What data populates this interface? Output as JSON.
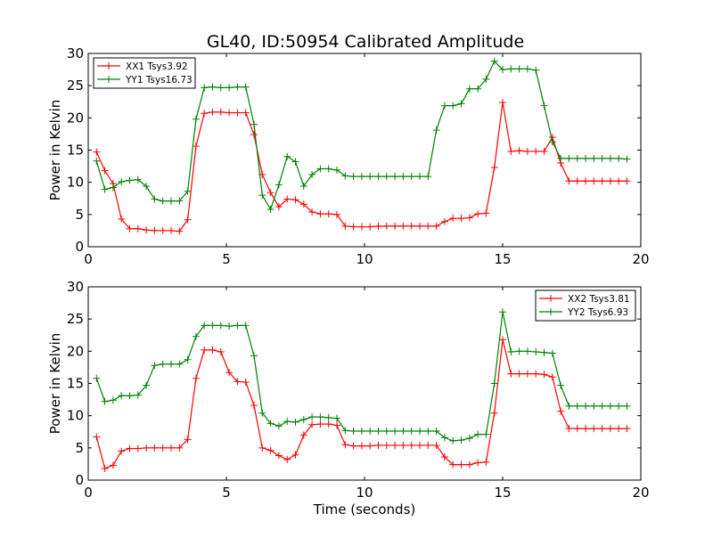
{
  "figure": {
    "title": "GL40, ID:50954 Calibrated Amplitude"
  },
  "chart_data": [
    {
      "type": "line",
      "title": "GL40, ID:50954 Calibrated Amplitude",
      "xlabel": "",
      "ylabel": "Power in Kelvin",
      "xlim": [
        0,
        20
      ],
      "ylim": [
        0,
        30
      ],
      "xticks": [
        0,
        5,
        10,
        15,
        20
      ],
      "yticks": [
        0,
        5,
        10,
        15,
        20,
        25,
        30
      ],
      "grid": false,
      "legend_position": "top-left",
      "marker": "+",
      "x": [
        0.3,
        0.6,
        0.9,
        1.2,
        1.5,
        1.8,
        2.1,
        2.4,
        2.7,
        3.0,
        3.3,
        3.6,
        3.9,
        4.2,
        4.5,
        4.8,
        5.1,
        5.4,
        5.7,
        6.0,
        6.3,
        6.6,
        6.9,
        7.2,
        7.5,
        7.8,
        8.1,
        8.4,
        8.7,
        9.0,
        9.3,
        9.6,
        9.9,
        10.2,
        10.5,
        10.8,
        11.1,
        11.4,
        11.7,
        12.0,
        12.3,
        12.6,
        12.9,
        13.2,
        13.5,
        13.8,
        14.1,
        14.4,
        14.7,
        15.0,
        15.3,
        15.6,
        15.9,
        16.2,
        16.5,
        16.8,
        17.1,
        17.4,
        17.7,
        18.0,
        18.3,
        18.6,
        18.9,
        19.2,
        19.5
      ],
      "series": [
        {
          "name": "XX1 Tsys3.92",
          "color": "#ff0000",
          "values": [
            14.7,
            11.8,
            9.8,
            4.3,
            2.8,
            2.8,
            2.6,
            2.5,
            2.5,
            2.5,
            2.4,
            4.2,
            15.6,
            20.7,
            20.9,
            20.9,
            20.8,
            20.8,
            20.8,
            17.4,
            11.2,
            8.4,
            6.2,
            7.4,
            7.3,
            6.6,
            5.4,
            5.1,
            5.1,
            5.0,
            3.2,
            3.1,
            3.1,
            3.1,
            3.2,
            3.2,
            3.2,
            3.2,
            3.2,
            3.2,
            3.2,
            3.2,
            3.9,
            4.4,
            4.4,
            4.5,
            5.1,
            5.2,
            12.3,
            22.4,
            14.8,
            14.9,
            14.8,
            14.8,
            14.8,
            17.0,
            13.0,
            10.2,
            10.2,
            10.2,
            10.2,
            10.2,
            10.2,
            10.2,
            10.2
          ]
        },
        {
          "name": "YY1 Tsys16.73",
          "color": "#008000",
          "values": [
            13.3,
            8.9,
            9.2,
            10.1,
            10.3,
            10.4,
            9.4,
            7.4,
            7.1,
            7.1,
            7.1,
            8.6,
            19.8,
            24.7,
            24.8,
            24.7,
            24.7,
            24.8,
            24.8,
            19.0,
            8.0,
            5.8,
            9.6,
            14.0,
            13.2,
            9.4,
            11.2,
            12.1,
            12.1,
            11.9,
            11.0,
            10.9,
            10.9,
            10.9,
            10.9,
            10.9,
            10.9,
            10.9,
            10.9,
            10.9,
            10.9,
            18.1,
            21.9,
            21.9,
            22.2,
            24.5,
            24.5,
            26.0,
            28.8,
            27.5,
            27.6,
            27.6,
            27.6,
            27.4,
            21.9,
            16.3,
            13.7,
            13.7,
            13.7,
            13.7,
            13.7,
            13.7,
            13.7,
            13.7,
            13.6
          ]
        }
      ]
    },
    {
      "type": "line",
      "title": "",
      "xlabel": "Time (seconds)",
      "ylabel": "Power in Kelvin",
      "xlim": [
        0,
        20
      ],
      "ylim": [
        0,
        30
      ],
      "xticks": [
        0,
        5,
        10,
        15,
        20
      ],
      "yticks": [
        0,
        5,
        10,
        15,
        20,
        25,
        30
      ],
      "grid": false,
      "legend_position": "top-right",
      "marker": "+",
      "x": [
        0.3,
        0.6,
        0.9,
        1.2,
        1.5,
        1.8,
        2.1,
        2.4,
        2.7,
        3.0,
        3.3,
        3.6,
        3.9,
        4.2,
        4.5,
        4.8,
        5.1,
        5.4,
        5.7,
        6.0,
        6.3,
        6.6,
        6.9,
        7.2,
        7.5,
        7.8,
        8.1,
        8.4,
        8.7,
        9.0,
        9.3,
        9.6,
        9.9,
        10.2,
        10.5,
        10.8,
        11.1,
        11.4,
        11.7,
        12.0,
        12.3,
        12.6,
        12.9,
        13.2,
        13.5,
        13.8,
        14.1,
        14.4,
        14.7,
        15.0,
        15.3,
        15.6,
        15.9,
        16.2,
        16.5,
        16.8,
        17.1,
        17.4,
        17.7,
        18.0,
        18.3,
        18.6,
        18.9,
        19.2,
        19.5
      ],
      "series": [
        {
          "name": "XX2 Tsys3.81",
          "color": "#ff0000",
          "values": [
            6.7,
            1.8,
            2.3,
            4.5,
            4.9,
            4.9,
            5.0,
            5.0,
            5.0,
            5.0,
            5.0,
            6.3,
            15.8,
            20.2,
            20.2,
            19.9,
            16.7,
            15.3,
            15.2,
            11.6,
            5.0,
            4.6,
            3.8,
            3.2,
            3.9,
            7.0,
            8.6,
            8.7,
            8.7,
            8.5,
            5.5,
            5.3,
            5.3,
            5.3,
            5.4,
            5.4,
            5.4,
            5.4,
            5.4,
            5.4,
            5.4,
            5.4,
            3.6,
            2.4,
            2.4,
            2.4,
            2.7,
            2.8,
            10.4,
            21.8,
            16.5,
            16.5,
            16.5,
            16.5,
            16.4,
            16.0,
            10.7,
            8.0,
            8.0,
            8.0,
            8.0,
            8.0,
            8.0,
            8.0,
            8.0
          ]
        },
        {
          "name": "YY2 Tsys6.93",
          "color": "#008000",
          "values": [
            15.8,
            12.2,
            12.4,
            13.1,
            13.1,
            13.2,
            14.7,
            17.8,
            18.0,
            18.0,
            18.0,
            18.7,
            22.3,
            24.0,
            24.0,
            24.0,
            23.9,
            24.0,
            24.0,
            19.3,
            10.4,
            8.8,
            8.4,
            9.1,
            9.0,
            9.4,
            9.8,
            9.8,
            9.7,
            9.6,
            7.7,
            7.6,
            7.6,
            7.6,
            7.6,
            7.6,
            7.6,
            7.6,
            7.6,
            7.6,
            7.6,
            7.6,
            6.6,
            6.1,
            6.2,
            6.5,
            7.1,
            7.1,
            15.0,
            26.1,
            19.9,
            20.0,
            20.0,
            19.9,
            19.8,
            19.7,
            14.7,
            11.5,
            11.5,
            11.5,
            11.5,
            11.5,
            11.5,
            11.5,
            11.5
          ]
        }
      ]
    }
  ]
}
